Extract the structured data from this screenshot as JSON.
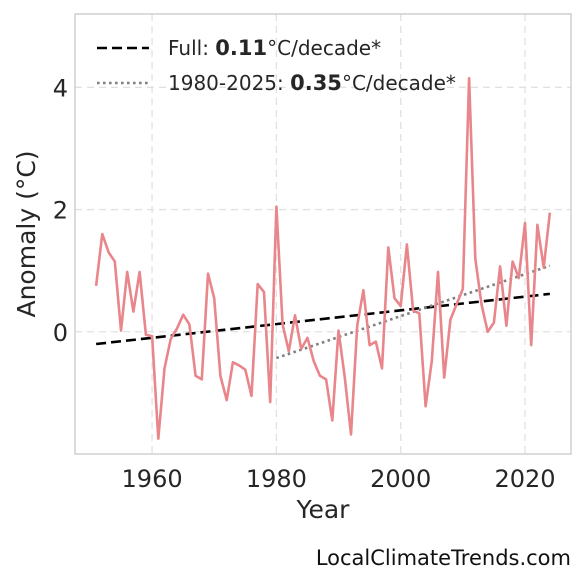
{
  "chart_data": {
    "type": "line",
    "title": "",
    "xlabel": "Year",
    "ylabel": "Anomaly (°C)",
    "xlim": [
      1947.6,
      2027.4
    ],
    "ylim": [
      -2.0,
      5.2
    ],
    "xticks": [
      1960,
      1980,
      2000,
      2020
    ],
    "yticks": [
      0,
      2,
      4
    ],
    "grid": true,
    "legend_position": "top-left",
    "series": [
      {
        "color": "#e8868b",
        "x": [
          1951,
          1952,
          1953,
          1954,
          1955,
          1956,
          1957,
          1958,
          1959,
          1960,
          1961,
          1962,
          1963,
          1964,
          1965,
          1966,
          1967,
          1968,
          1969,
          1970,
          1971,
          1972,
          1973,
          1974,
          1975,
          1976,
          1977,
          1978,
          1979,
          1980,
          1981,
          1982,
          1983,
          1984,
          1985,
          1986,
          1987,
          1988,
          1989,
          1990,
          1991,
          1992,
          1993,
          1994,
          1995,
          1996,
          1997,
          1998,
          1999,
          2000,
          2001,
          2002,
          2003,
          2004,
          2005,
          2006,
          2007,
          2008,
          2009,
          2010,
          2011,
          2012,
          2013,
          2014,
          2015,
          2016,
          2017,
          2018,
          2019,
          2020,
          2021,
          2022,
          2023,
          2024
        ],
        "y": [
          0.75,
          1.6,
          1.3,
          1.15,
          0.02,
          0.98,
          0.33,
          0.98,
          -0.05,
          -0.07,
          -1.75,
          -0.6,
          -0.12,
          0.05,
          0.28,
          0.12,
          -0.72,
          -0.78,
          0.95,
          0.55,
          -0.72,
          -1.12,
          -0.5,
          -0.55,
          -0.62,
          -1.05,
          0.78,
          0.65,
          -1.15,
          2.05,
          0.12,
          -0.32,
          0.27,
          -0.28,
          -0.1,
          -0.48,
          -0.72,
          -0.78,
          -1.45,
          0.02,
          -0.75,
          -1.68,
          0.1,
          0.68,
          -0.22,
          -0.16,
          -0.6,
          1.38,
          0.55,
          0.42,
          1.43,
          0.35,
          0.3,
          -1.22,
          -0.48,
          0.98,
          -0.75,
          0.2,
          0.45,
          0.7,
          4.15,
          1.2,
          0.45,
          0.0,
          0.15,
          1.07,
          0.1,
          1.15,
          0.88,
          1.78,
          -0.22,
          1.75,
          1.05,
          1.95
        ]
      }
    ],
    "trends": [
      {
        "label": "Full: ",
        "value": "0.11",
        "unit": "°C/decade*",
        "style": "dashed",
        "color": "#000000",
        "x": [
          1951,
          2024
        ],
        "y": [
          -0.2,
          0.62
        ]
      },
      {
        "label": "1980-2025: ",
        "value": "0.35",
        "unit": "°C/decade*",
        "style": "dotted",
        "color": "#808080",
        "x": [
          1980,
          2024
        ],
        "y": [
          -0.43,
          1.08
        ]
      }
    ]
  },
  "credit": "LocalClimateTrends.com"
}
